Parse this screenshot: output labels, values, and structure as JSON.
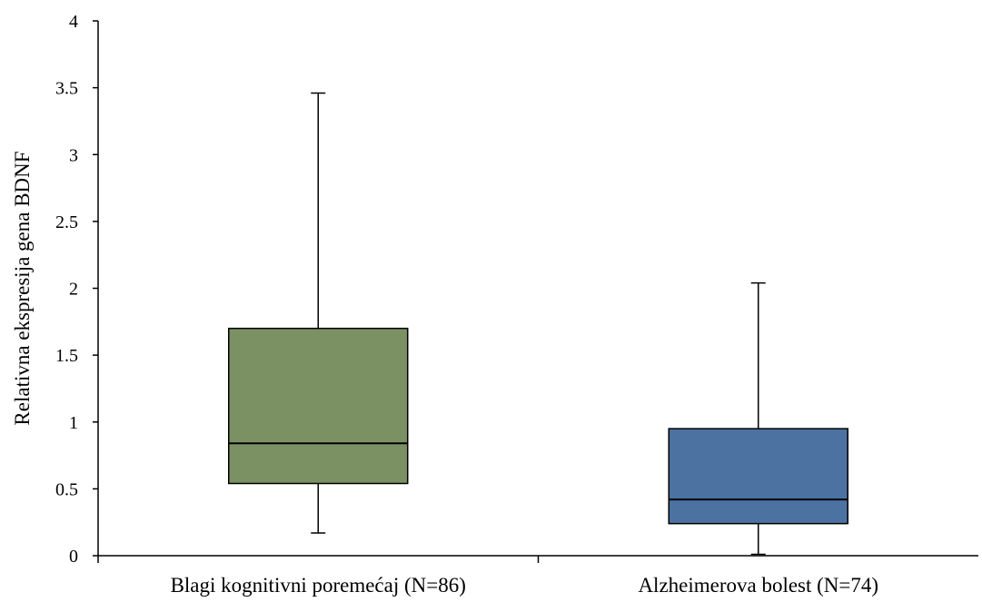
{
  "chart_data": {
    "type": "box",
    "title": "",
    "xlabel": "",
    "ylabel": "Relativna ekspresija gena BDNF",
    "ylim": [
      0,
      4
    ],
    "yticks": [
      0,
      0.5,
      1,
      1.5,
      2,
      2.5,
      3,
      3.5,
      4
    ],
    "ytick_labels": [
      "0",
      "0.5",
      "1",
      "1.5",
      "2",
      "2.5",
      "3",
      "3.5",
      "4"
    ],
    "grid": false,
    "categories": [
      "Blagi kognitivni poremećaj (N=86)",
      "Alzheimerova bolest (N=74)"
    ],
    "boxes": [
      {
        "min": 0.17,
        "q1": 0.54,
        "median": 0.84,
        "q3": 1.7,
        "max": 3.46,
        "color": "#7C9163"
      },
      {
        "min": 0.01,
        "q1": 0.24,
        "median": 0.42,
        "q3": 0.95,
        "max": 2.04,
        "color": "#4B72A1"
      }
    ]
  }
}
